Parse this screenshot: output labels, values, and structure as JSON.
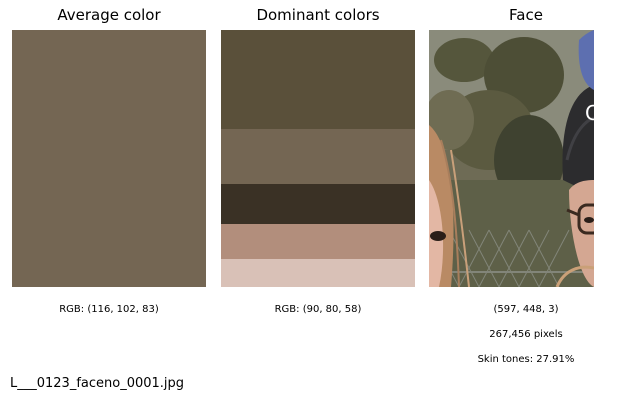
{
  "panels": {
    "average": {
      "title": "Average color",
      "color": "#746653",
      "caption": "RGB: (116, 102, 83)"
    },
    "dominant": {
      "title": "Dominant colors",
      "caption": "RGB: (90, 80, 58)",
      "bands": [
        {
          "color": "#5a503a",
          "fraction": 0.385
        },
        {
          "color": "#746653",
          "fraction": 0.215
        },
        {
          "color": "#3a3125",
          "fraction": 0.155
        },
        {
          "color": "#b28e7c",
          "fraction": 0.135
        },
        {
          "color": "#d9c1b7",
          "fraction": 0.11
        }
      ]
    },
    "face": {
      "title": "Face",
      "shape": "(597, 448, 3)",
      "pixels": "267,456 pixels",
      "skin": "Skin tones: 27.91%",
      "hat_text": "Ca"
    }
  },
  "filename": "L___0123_faceno_0001.jpg"
}
